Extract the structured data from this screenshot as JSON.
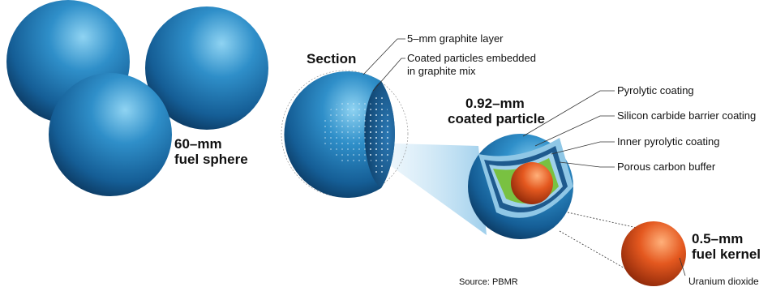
{
  "labels": {
    "fuel_sphere_line1": "60–mm",
    "fuel_sphere_line2": "fuel sphere",
    "section": "Section",
    "graphite_layer": "5–mm graphite layer",
    "embedded_line1": "Coated particles embedded",
    "embedded_line2": "in graphite  mix",
    "coated_particle_line1": "0.92–mm",
    "coated_particle_line2": "coated particle",
    "pyrolytic": "Pyrolytic coating",
    "silicon_carbide": "Silicon carbide barrier coating",
    "inner_pyrolytic": "Inner pyrolytic coating",
    "porous_buffer": "Porous carbon buffer",
    "kernel_line1": "0.5–mm",
    "kernel_line2": "fuel kernel",
    "uranium": "Uranium dioxide",
    "source": "Source: PBMR"
  },
  "colors": {
    "sphere_blue": "#1f6fa8",
    "sphere_dark": "#0b3d66",
    "beam": "#a9d4ee",
    "green_layer": "#7cc33f",
    "kernel_orange": "#e0531c"
  }
}
